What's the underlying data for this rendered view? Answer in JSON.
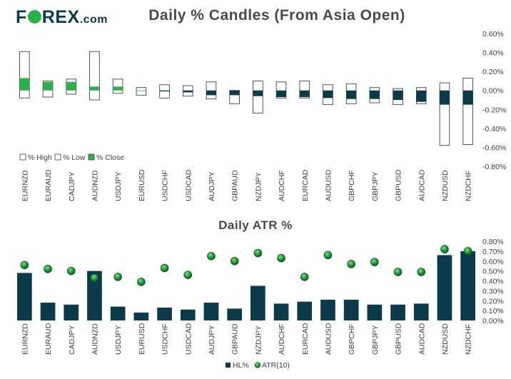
{
  "header": {
    "logo_text_before": "F",
    "logo_text_after": "REX",
    "logo_suffix": ".com",
    "title": "Daily % Candles (From Asia Open)"
  },
  "colors": {
    "accent_green": "#2bb04a",
    "navy": "#0b3a4a",
    "candle_outline": "#404040"
  },
  "chart_data": [
    {
      "type": "candlestick",
      "title": "Daily % Candles (From Asia Open)",
      "categories": [
        "EURNZD",
        "EURAUD",
        "CADJPY",
        "AUDNZD",
        "USDJPY",
        "EURUSD",
        "USDCHF",
        "USDCAD",
        "AUDJPY",
        "GBPAUD",
        "NZDJPY",
        "AUDCHF",
        "EURCAD",
        "AUDUSD",
        "GBPCHF",
        "GBPJPY",
        "GBPUSD",
        "AUDCAD",
        "NZDUSD",
        "NZDCHF"
      ],
      "high": [
        0.41,
        0.1,
        0.12,
        0.41,
        0.12,
        0.03,
        0.06,
        0.05,
        0.09,
        0.0,
        0.1,
        0.09,
        0.1,
        0.06,
        0.07,
        0.03,
        0.02,
        0.03,
        0.08,
        0.13
      ],
      "low": [
        -0.08,
        -0.07,
        -0.04,
        -0.1,
        -0.03,
        -0.05,
        -0.08,
        -0.06,
        -0.09,
        -0.14,
        -0.24,
        -0.08,
        -0.08,
        -0.15,
        -0.14,
        -0.13,
        -0.15,
        -0.14,
        -0.58,
        -0.57
      ],
      "close": [
        0.13,
        0.09,
        0.09,
        0.04,
        0.04,
        0.0,
        -0.01,
        -0.02,
        -0.05,
        -0.05,
        -0.06,
        -0.07,
        -0.07,
        -0.08,
        -0.09,
        -0.09,
        -0.1,
        -0.12,
        -0.15,
        -0.15
      ],
      "ylim": [
        -0.8,
        0.6
      ],
      "yticks": [
        "0.60%",
        "0.40%",
        "0.20%",
        "0.00%",
        "-0.20%",
        "-0.40%",
        "-0.60%",
        "-0.80%"
      ],
      "legend": [
        "% High",
        "% Low",
        "% Close"
      ],
      "legend_position": "bottom-left"
    },
    {
      "type": "bar",
      "title": "Daily ATR %",
      "categories": [
        "EURNZD",
        "EURAUD",
        "CADJPY",
        "AUDNZD",
        "USDJPY",
        "EURUSD",
        "USDCHF",
        "USDCAD",
        "AUDJPY",
        "GBPAUD",
        "NZDJPY",
        "AUDCHF",
        "EURCAD",
        "AUDUSD",
        "GBPCHF",
        "GBPJPY",
        "GBPUSD",
        "AUDCAD",
        "NZDUSD",
        "NZDCHF"
      ],
      "series": [
        {
          "name": "HL%",
          "type": "bar",
          "values": [
            0.48,
            0.18,
            0.16,
            0.5,
            0.14,
            0.08,
            0.13,
            0.11,
            0.18,
            0.12,
            0.35,
            0.17,
            0.19,
            0.21,
            0.21,
            0.16,
            0.16,
            0.17,
            0.66,
            0.7
          ]
        },
        {
          "name": "ATR(10)",
          "type": "marker",
          "values": [
            0.56,
            0.52,
            0.5,
            0.43,
            0.44,
            0.39,
            0.53,
            0.46,
            0.65,
            0.6,
            0.68,
            0.63,
            0.44,
            0.66,
            0.57,
            0.59,
            0.49,
            0.49,
            0.72,
            0.7
          ]
        }
      ],
      "ylim": [
        0.0,
        0.8
      ],
      "yticks": [
        "0.80%",
        "0.70%",
        "0.60%",
        "0.50%",
        "0.40%",
        "0.30%",
        "0.20%",
        "0.10%",
        "0.00%"
      ],
      "legend_position": "bottom-center"
    }
  ]
}
